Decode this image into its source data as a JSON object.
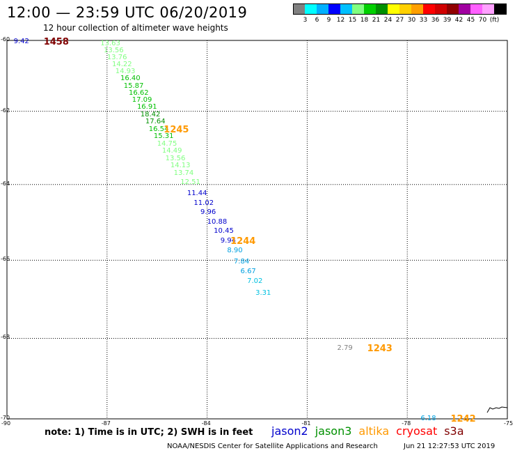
{
  "title": "12:00 — 23:59 UTC 06/20/2019",
  "subtitle": "12 hour collection of altimeter wave heights",
  "legend": {
    "colors": [
      "#808080",
      "#00ffff",
      "#00b0ff",
      "#0000ff",
      "#00c0ff",
      "#80ff80",
      "#00d000",
      "#009000",
      "#ffff00",
      "#ffd000",
      "#ffa000",
      "#ff0000",
      "#d00000",
      "#900000",
      "#a000a0",
      "#ff60ff",
      "#ffa0ff",
      "#000000"
    ],
    "labels": [
      "3",
      "6",
      "9",
      "12",
      "15",
      "18",
      "21",
      "24",
      "27",
      "30",
      "33",
      "36",
      "39",
      "42",
      "45",
      "70",
      "(ft)"
    ]
  },
  "axes": {
    "y_ticks": [
      "-60",
      "-62",
      "-64",
      "-66",
      "-68",
      "-70"
    ],
    "x_ticks": [
      "-90",
      "-87",
      "-84",
      "-81",
      "-78",
      "-75"
    ]
  },
  "observations": [
    {
      "lon": -89.8,
      "lat": -60.05,
      "value": "9.42",
      "color": "#0000cc"
    },
    {
      "lon": -87.2,
      "lat": -60.1,
      "value": "13.63",
      "color": "#80ff80"
    },
    {
      "lon": -87.1,
      "lat": -60.3,
      "value": "13.56",
      "color": "#80ff80"
    },
    {
      "lon": -87.0,
      "lat": -60.5,
      "value": "13.76",
      "color": "#80ff80"
    },
    {
      "lon": -86.85,
      "lat": -60.7,
      "value": "14.22",
      "color": "#80ff80"
    },
    {
      "lon": -86.75,
      "lat": -60.9,
      "value": "14.93",
      "color": "#80ff80"
    },
    {
      "lon": -86.6,
      "lat": -61.1,
      "value": "16.40",
      "color": "#00c000"
    },
    {
      "lon": -86.5,
      "lat": -61.3,
      "value": "15.87",
      "color": "#00c000"
    },
    {
      "lon": -86.35,
      "lat": -61.5,
      "value": "16.62",
      "color": "#00c000"
    },
    {
      "lon": -86.25,
      "lat": -61.7,
      "value": "17.09",
      "color": "#00c000"
    },
    {
      "lon": -86.1,
      "lat": -61.9,
      "value": "16.91",
      "color": "#00c000"
    },
    {
      "lon": -86.0,
      "lat": -62.1,
      "value": "18.42",
      "color": "#009000"
    },
    {
      "lon": -85.85,
      "lat": -62.3,
      "value": "17.64",
      "color": "#009000"
    },
    {
      "lon": -85.75,
      "lat": -62.5,
      "value": "16.54",
      "color": "#00c000"
    },
    {
      "lon": -85.6,
      "lat": -62.7,
      "value": "15.31",
      "color": "#00c000"
    },
    {
      "lon": -85.5,
      "lat": -62.9,
      "value": "14.75",
      "color": "#80ff80"
    },
    {
      "lon": -85.35,
      "lat": -63.1,
      "value": "14.49",
      "color": "#80ff80"
    },
    {
      "lon": -85.25,
      "lat": -63.3,
      "value": "13.56",
      "color": "#80ff80"
    },
    {
      "lon": -85.1,
      "lat": -63.5,
      "value": "14.13",
      "color": "#80ff80"
    },
    {
      "lon": -85.0,
      "lat": -63.7,
      "value": "13.74",
      "color": "#80ff80"
    },
    {
      "lon": -84.8,
      "lat": -63.95,
      "value": "12.51",
      "color": "#80ff80"
    },
    {
      "lon": -84.6,
      "lat": -64.25,
      "value": "11.44",
      "color": "#0000cc"
    },
    {
      "lon": -84.4,
      "lat": -64.5,
      "value": "11.02",
      "color": "#0000cc"
    },
    {
      "lon": -84.2,
      "lat": -64.75,
      "value": "9.96",
      "color": "#0000cc"
    },
    {
      "lon": -84.0,
      "lat": -65.0,
      "value": "10.88",
      "color": "#0000cc"
    },
    {
      "lon": -83.8,
      "lat": -65.25,
      "value": "10.45",
      "color": "#0000cc"
    },
    {
      "lon": -83.6,
      "lat": -65.5,
      "value": "9.94",
      "color": "#0000cc"
    },
    {
      "lon": -83.4,
      "lat": -65.75,
      "value": "8.90",
      "color": "#00a0e0"
    },
    {
      "lon": -83.2,
      "lat": -66.05,
      "value": "7.84",
      "color": "#00a0e0"
    },
    {
      "lon": -83.0,
      "lat": -66.3,
      "value": "6.67",
      "color": "#00a0e0"
    },
    {
      "lon": -82.8,
      "lat": -66.55,
      "value": "7.02",
      "color": "#00c0e0"
    },
    {
      "lon": -82.55,
      "lat": -66.85,
      "value": "3.31",
      "color": "#00c0e0"
    },
    {
      "lon": -80.1,
      "lat": -68.25,
      "value": "2.79",
      "color": "#808080"
    },
    {
      "lon": -77.6,
      "lat": -70.0,
      "value": "6.18",
      "color": "#00a0e0"
    }
  ],
  "cycles": [
    {
      "lon": -88.9,
      "lat": -60.05,
      "value": "1458",
      "color": "#800000"
    },
    {
      "lon": -85.3,
      "lat": -62.5,
      "value": "1245",
      "color": "#ff9900"
    },
    {
      "lon": -83.3,
      "lat": -65.5,
      "value": "1244",
      "color": "#ff9900"
    },
    {
      "lon": -79.2,
      "lat": -68.25,
      "value": "1243",
      "color": "#ff9900"
    },
    {
      "lon": -76.7,
      "lat": -70.0,
      "value": "1242",
      "color": "#ff9900"
    }
  ],
  "note": "note:  1) Time is in UTC;  2) SWH is in feet",
  "satellites": [
    {
      "name": "jason2",
      "color": "#0000cc"
    },
    {
      "name": "jason3",
      "color": "#009000"
    },
    {
      "name": "altika",
      "color": "#ff9900"
    },
    {
      "name": "cryosat",
      "color": "#ff0000"
    },
    {
      "name": "s3a",
      "color": "#800000"
    }
  ],
  "credit": "NOAA/NESDIS Center for Satellite Applications and Research",
  "timestamp": "Jun 21 12:27:53 UTC 2019"
}
